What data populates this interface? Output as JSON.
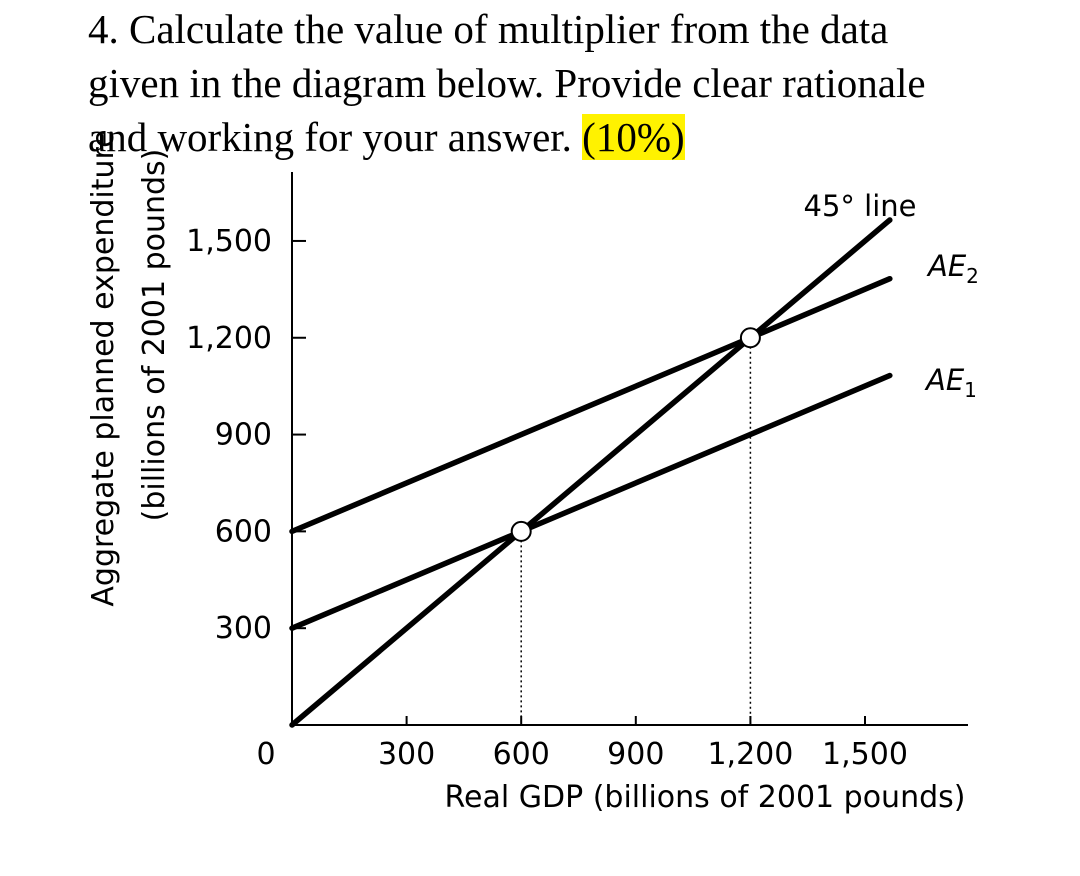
{
  "question": {
    "line1": "4. Calculate the value of multiplier from the data",
    "line2": "given in the diagram below. Provide clear rationale",
    "line3_pre": "and working for your answer. ",
    "marks": "(10%)"
  },
  "chart_data": {
    "type": "line",
    "title": "",
    "ylabel": "Aggregate planned expenditure",
    "ylabel_sub": "(billions of 2001 pounds)",
    "xlabel": "Real GDP (billions of 2001 pounds)",
    "origin_label": "0",
    "xlim": [
      0,
      1500
    ],
    "ylim": [
      0,
      1500
    ],
    "xticks": [
      300,
      600,
      900,
      1200,
      1500
    ],
    "xtick_labels": [
      "300",
      "600",
      "900",
      "1,200",
      "1,500"
    ],
    "yticks": [
      300,
      600,
      900,
      1200,
      1500
    ],
    "ytick_labels": [
      "300",
      "600",
      "900",
      "1,200",
      "1,500"
    ],
    "grid": false,
    "series": [
      {
        "name": "45° line",
        "x": [
          0,
          1565
        ],
        "y": [
          0,
          1565
        ]
      },
      {
        "name": "AE2",
        "x": [
          0,
          1200,
          1565
        ],
        "y": [
          600,
          1200,
          1383
        ]
      },
      {
        "name": "AE1",
        "x": [
          0,
          600,
          1565
        ],
        "y": [
          300,
          600,
          1083
        ]
      }
    ],
    "equilibria": [
      {
        "x": 600,
        "y": 600
      },
      {
        "x": 1200,
        "y": 1200
      }
    ]
  }
}
